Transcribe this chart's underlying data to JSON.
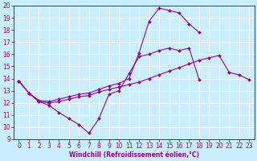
{
  "line1_x": [
    0,
    1,
    2,
    3,
    4,
    5,
    6,
    7,
    8,
    9,
    10,
    11,
    12,
    13,
    14,
    15,
    16,
    17,
    18,
    19,
    20,
    21,
    22,
    23
  ],
  "line1_y": [
    13.8,
    12.8,
    12.1,
    11.8,
    11.2,
    10.7,
    10.2,
    9.5,
    10.7,
    12.7,
    13.0,
    14.4,
    15.8,
    16.0,
    16.3,
    16.5,
    16.3,
    16.5,
    13.9,
    null,
    null,
    null,
    null,
    null
  ],
  "line2_x": [
    0,
    1,
    2,
    3,
    4,
    5,
    6,
    7,
    8,
    9,
    10,
    11,
    12,
    13,
    14,
    15,
    16,
    17,
    18,
    19,
    20,
    21,
    22,
    23
  ],
  "line2_y": [
    13.8,
    12.8,
    12.2,
    12.1,
    12.3,
    12.5,
    12.7,
    12.8,
    13.1,
    13.4,
    13.6,
    14.0,
    16.1,
    18.7,
    19.8,
    19.6,
    19.4,
    18.5,
    17.8,
    null,
    null,
    null,
    null,
    null
  ],
  "line3_x": [
    0,
    1,
    2,
    3,
    4,
    5,
    6,
    7,
    8,
    9,
    10,
    11,
    12,
    13,
    14,
    15,
    16,
    17,
    18,
    19,
    20,
    21,
    22,
    23
  ],
  "line3_y": [
    13.8,
    12.8,
    12.1,
    12.0,
    12.1,
    12.3,
    12.5,
    12.6,
    12.9,
    13.1,
    13.3,
    13.5,
    13.7,
    14.0,
    14.3,
    14.6,
    14.9,
    15.2,
    15.5,
    15.7,
    15.9,
    14.5,
    14.3,
    13.9
  ],
  "color": "#990099",
  "bg_color": "#c8eeff",
  "grid_color": "#aaddcc",
  "xlabel": "Windchill (Refroidissement éolien,°C)",
  "xlim": [
    -0.5,
    23.5
  ],
  "ylim": [
    9,
    20
  ],
  "xticks": [
    0,
    1,
    2,
    3,
    4,
    5,
    6,
    7,
    8,
    9,
    10,
    11,
    12,
    13,
    14,
    15,
    16,
    17,
    18,
    19,
    20,
    21,
    22,
    23
  ],
  "yticks": [
    9,
    10,
    11,
    12,
    13,
    14,
    15,
    16,
    17,
    18,
    19,
    20
  ],
  "marker": "D",
  "markersize": 2,
  "linewidth": 0.8,
  "tick_fontsize": 5.5
}
